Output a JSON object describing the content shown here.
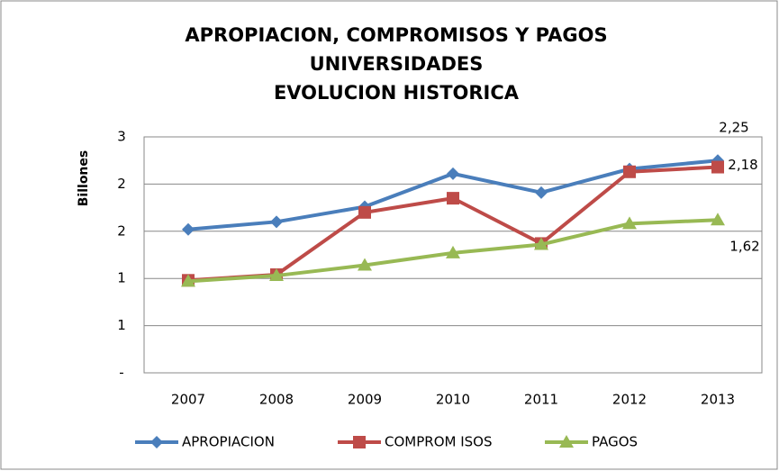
{
  "chart_data": {
    "type": "line",
    "title": [
      "APROPIACION, COMPROMISOS Y PAGOS",
      "UNIVERSIDADES",
      "EVOLUCION HISTORICA"
    ],
    "y_label": "Billones",
    "categories": [
      "2007",
      "2008",
      "2009",
      "2010",
      "2011",
      "2012",
      "2013"
    ],
    "series": [
      {
        "name": "APROPIACION",
        "color": "#4a7ebb",
        "marker": "diamond",
        "values": [
          1.52,
          1.6,
          1.76,
          2.11,
          1.91,
          2.16,
          2.25
        ],
        "value_labels": [
          null,
          null,
          null,
          null,
          null,
          null,
          "2,25"
        ]
      },
      {
        "name": "COMPROM ISOS",
        "color": "#be4b48",
        "marker": "square",
        "values": [
          0.98,
          1.04,
          1.7,
          1.85,
          1.37,
          2.13,
          2.18
        ],
        "value_labels": [
          null,
          null,
          null,
          null,
          null,
          null,
          "2,18"
        ]
      },
      {
        "name": "PAGOS",
        "color": "#98b954",
        "marker": "triangle",
        "values": [
          0.97,
          1.03,
          1.14,
          1.27,
          1.36,
          1.58,
          1.62
        ],
        "value_labels": [
          null,
          null,
          null,
          null,
          null,
          null,
          "1,62"
        ]
      }
    ],
    "ylim": [
      0,
      2.5
    ],
    "yticks": [
      {
        "value": 0,
        "label": "-"
      },
      {
        "value": 0.5,
        "label": "1"
      },
      {
        "value": 1,
        "label": "1"
      },
      {
        "value": 1.5,
        "label": "2"
      },
      {
        "value": 2,
        "label": "2"
      },
      {
        "value": 2.5,
        "label": "3"
      }
    ],
    "grid": true,
    "legend": "bottom"
  }
}
